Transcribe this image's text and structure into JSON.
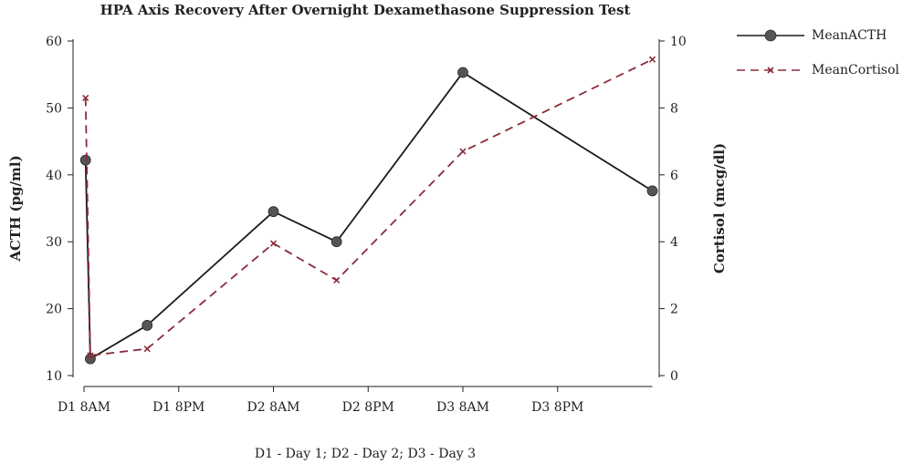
{
  "chart_data": {
    "type": "line",
    "title": "HPA Axis Recovery After Overnight Dexamethasone Suppression Test",
    "footnote": "D1 - Day 1; D2 - Day 2; D3 - Day 3",
    "xlabel": "",
    "x_ticks": [
      {
        "hour": 0,
        "label": "D1 8AM"
      },
      {
        "hour": 12,
        "label": "D1 8PM"
      },
      {
        "hour": 24,
        "label": "D2 8AM"
      },
      {
        "hour": 36,
        "label": "D2 8PM"
      },
      {
        "hour": 48,
        "label": "D3 8AM"
      },
      {
        "hour": 60,
        "label": "D3 8PM"
      }
    ],
    "xlim": [
      0,
      72
    ],
    "y_left": {
      "label": "ACTH (pg/ml)",
      "range": [
        10,
        60
      ],
      "ticks": [
        10,
        20,
        30,
        40,
        50,
        60
      ]
    },
    "y_right": {
      "label": "Cortisol (mcg/dl)",
      "range": [
        0,
        10
      ],
      "ticks": [
        0,
        2,
        4,
        6,
        8,
        10
      ]
    },
    "grid": false,
    "legend_position": "right",
    "series": [
      {
        "name": "MeanACTH",
        "axis": "left",
        "color": "#1a1a1a",
        "marker_color": "#555555",
        "style": "solid",
        "marker": "circle",
        "points": [
          [
            0.2,
            42.2
          ],
          [
            0.8,
            12.5
          ],
          [
            8,
            17.5
          ],
          [
            24,
            34.5
          ],
          [
            32,
            30.0
          ],
          [
            48,
            55.3
          ],
          [
            72,
            37.6
          ]
        ]
      },
      {
        "name": "MeanCortisol",
        "axis": "right",
        "color": "#8b2b3a",
        "style": "dashed",
        "marker": "x",
        "points": [
          [
            0.2,
            8.3
          ],
          [
            0.8,
            0.6
          ],
          [
            8,
            0.8
          ],
          [
            24,
            3.95
          ],
          [
            32,
            2.85
          ],
          [
            48,
            6.7
          ],
          [
            72,
            9.45
          ]
        ]
      }
    ]
  }
}
